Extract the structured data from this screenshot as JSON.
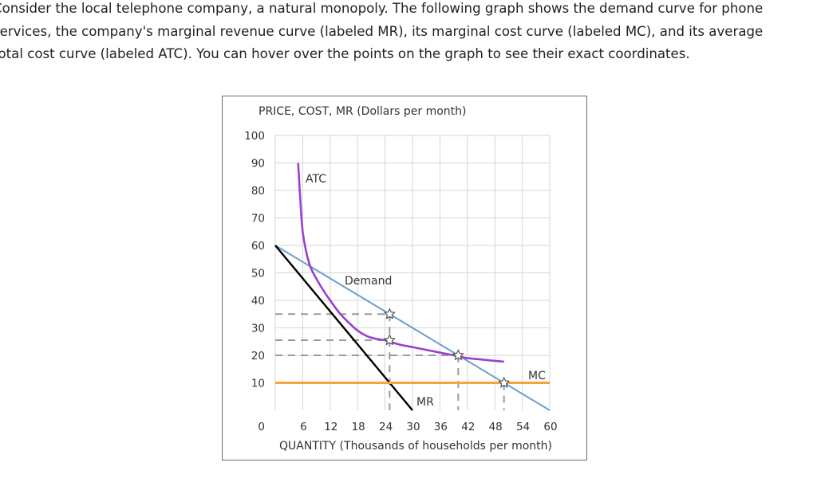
{
  "intro": {
    "line1": "Consider the local telephone company, a natural monopoly. The following graph shows the demand curve for phone",
    "line2": "services, the company's marginal revenue curve (labeled MR), its marginal cost curve (labeled MC), and its average",
    "line3": "total cost curve (labeled ATC). You can hover over the points on the graph to see their exact coordinates."
  },
  "colors": {
    "demand": "#6a9fd0",
    "mr": "#000000",
    "atc": "#9b3fcf",
    "mc": "#f6a53a",
    "dashed": "#9a9a9a",
    "grid": "#d6d6d6"
  },
  "chart_data": {
    "type": "line",
    "ylabel": "PRICE, COST, MR (Dollars per month)",
    "xlabel": "QUANTITY (Thousands of households per month)",
    "xlim": [
      0,
      60
    ],
    "ylim": [
      0,
      100
    ],
    "x_ticks": [
      6,
      12,
      18,
      24,
      30,
      36,
      42,
      48,
      54,
      60
    ],
    "y_ticks": [
      0,
      10,
      20,
      30,
      40,
      50,
      60,
      70,
      80,
      90,
      100
    ],
    "grid": true,
    "series": [
      {
        "name": "Demand",
        "label": "Demand",
        "color": "#6a9fd0",
        "points": [
          [
            0,
            60
          ],
          [
            60,
            0
          ]
        ]
      },
      {
        "name": "MR",
        "label": "MR",
        "color": "#000000",
        "points": [
          [
            0,
            60
          ],
          [
            30,
            0
          ]
        ]
      },
      {
        "name": "MC",
        "label": "MC",
        "color": "#f6a53a",
        "points": [
          [
            0,
            10
          ],
          [
            60,
            10
          ]
        ]
      },
      {
        "name": "ATC",
        "label": "ATC",
        "color": "#9b3fcf",
        "points": [
          [
            5,
            90
          ],
          [
            5.5,
            76
          ],
          [
            6,
            65
          ],
          [
            7,
            56
          ],
          [
            8,
            51
          ],
          [
            10,
            45
          ],
          [
            12,
            40
          ],
          [
            14,
            35.5
          ],
          [
            16,
            32
          ],
          [
            18,
            29
          ],
          [
            20,
            27
          ],
          [
            22,
            26
          ],
          [
            24,
            25.5
          ],
          [
            27,
            24
          ],
          [
            30,
            23
          ],
          [
            33,
            22
          ],
          [
            36,
            21
          ],
          [
            39,
            20
          ],
          [
            42,
            19
          ],
          [
            45,
            18.5
          ],
          [
            48,
            18
          ],
          [
            50,
            17.7
          ]
        ]
      }
    ],
    "highlight_points": [
      {
        "x": 25,
        "y": 35
      },
      {
        "x": 25,
        "y": 25.5
      },
      {
        "x": 40,
        "y": 20
      },
      {
        "x": 50,
        "y": 10
      }
    ],
    "dashed_guides": [
      {
        "y": 35,
        "x_to": 25
      },
      {
        "y": 25.5,
        "x_to": 25
      },
      {
        "y": 20,
        "x_to": 40
      },
      {
        "x": 25,
        "y_to": 35
      },
      {
        "x": 40,
        "y_to": 20
      },
      {
        "x": 50,
        "y_to": 10
      }
    ]
  }
}
